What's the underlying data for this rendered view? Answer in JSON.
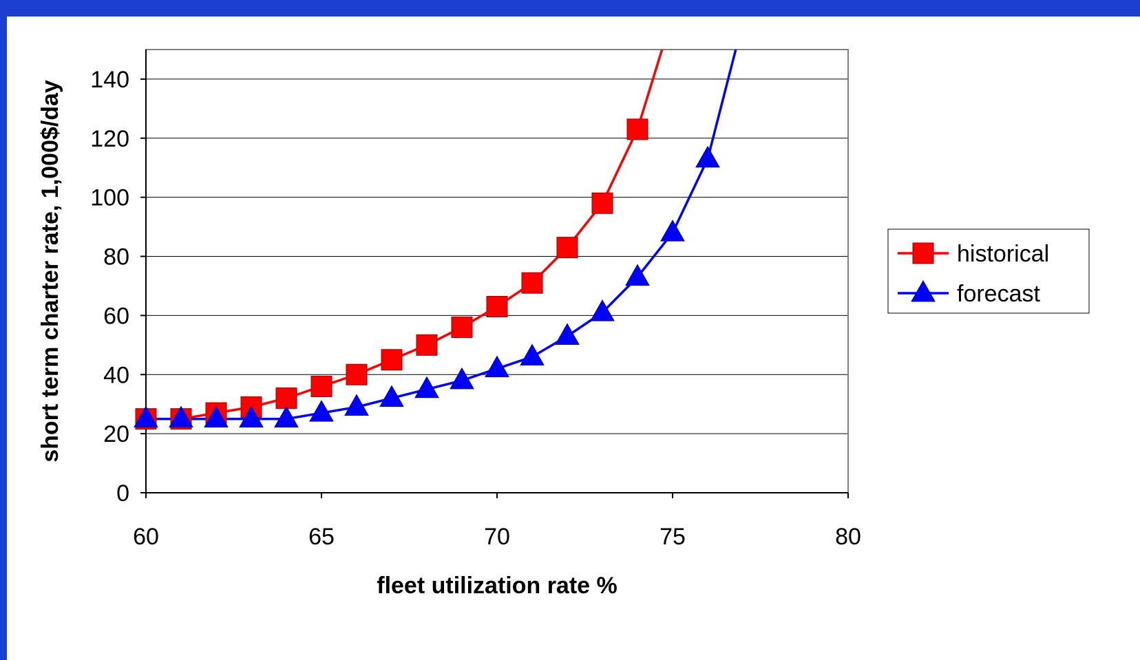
{
  "chart_data": {
    "type": "line",
    "xlabel": "fleet utilization rate %",
    "ylabel": "short term charter rate, 1,000$/day",
    "xlim": [
      60,
      80
    ],
    "ylim": [
      0,
      150
    ],
    "x_ticks": [
      60,
      65,
      70,
      75,
      80
    ],
    "y_ticks": [
      0,
      20,
      40,
      60,
      80,
      100,
      120,
      140
    ],
    "grid": "horizontal",
    "legend_position": "right",
    "series": [
      {
        "name": "historical",
        "color": "#ff0000",
        "marker": "square",
        "x": [
          60,
          61,
          62,
          63,
          64,
          65,
          66,
          67,
          68,
          69,
          70,
          71,
          72,
          73,
          74
        ],
        "y": [
          25,
          25,
          27,
          29,
          32,
          36,
          40,
          45,
          50,
          56,
          63,
          71,
          83,
          98,
          123
        ],
        "curve_continues_to": {
          "x": 74.7,
          "y": 150
        }
      },
      {
        "name": "forecast",
        "color": "#0000ff",
        "marker": "triangle",
        "x": [
          60,
          61,
          62,
          63,
          64,
          65,
          66,
          67,
          68,
          69,
          70,
          71,
          72,
          73,
          74,
          75,
          76
        ],
        "y": [
          25,
          25,
          25,
          25,
          25,
          27,
          29,
          32,
          35,
          38,
          42,
          46,
          53,
          61,
          73,
          88,
          113
        ],
        "curve_continues_to": {
          "x": 76.8,
          "y": 150
        }
      }
    ]
  }
}
